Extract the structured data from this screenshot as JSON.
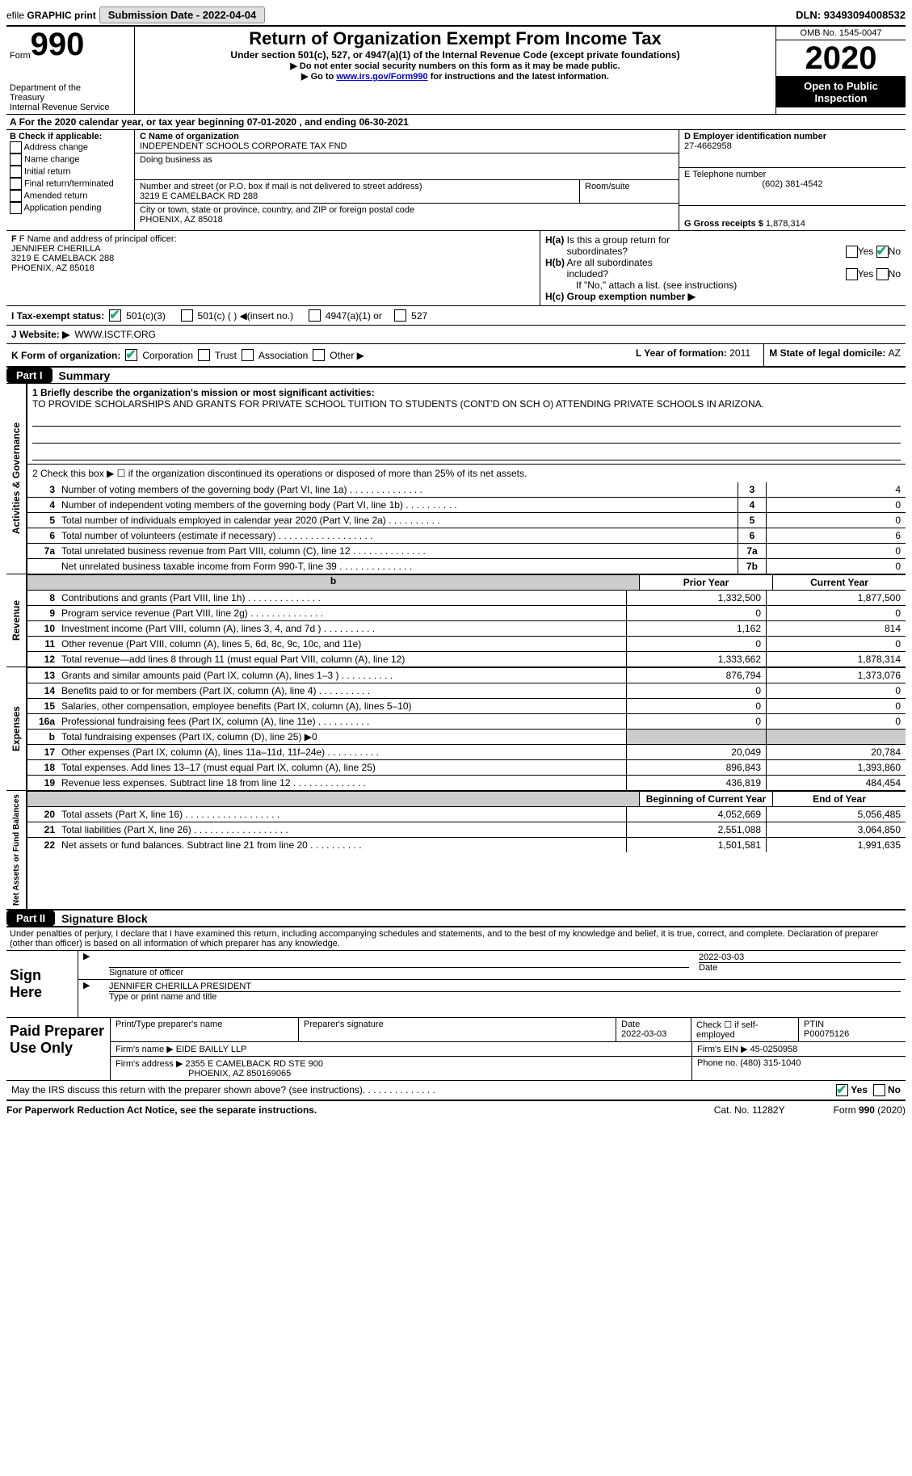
{
  "topbar": {
    "efile_prefix": "efile",
    "graphic": "GRAPHIC",
    "print": "print",
    "submission_label": "Submission Date - ",
    "submission_date": "2022-04-04",
    "dln_label": "DLN: ",
    "dln": "93493094008532"
  },
  "header": {
    "form_label": "Form",
    "form_number": "990",
    "dept1": "Department of the",
    "dept2": "Treasury",
    "dept3": "Internal Revenue Service",
    "title": "Return of Organization Exempt From Income Tax",
    "sub1": "Under section 501(c), 527, or 4947(a)(1) of the Internal Revenue Code (except private foundations)",
    "sub2": "▶ Do not enter social security numbers on this form as it may be made public.",
    "sub3_prefix": "▶ Go to ",
    "sub3_link": "www.irs.gov/Form990",
    "sub3_suffix": " for instructions and the latest information.",
    "omb": "OMB No. 1545-0047",
    "year": "2020",
    "open": "Open to Public Inspection"
  },
  "period": {
    "a_label": "A",
    "text_prefix": "For the 2020 calendar year, or tax year beginning ",
    "start": "07-01-2020",
    "text_mid": "     , and ending ",
    "end": "06-30-2021"
  },
  "blockB": {
    "title": "B Check if applicable:",
    "options": [
      "Address change",
      "Name change",
      "Initial return",
      "Final return/terminated",
      "Amended return",
      "Application pending"
    ],
    "checked": []
  },
  "blockC": {
    "name_label": "C Name of organization",
    "name": "INDEPENDENT SCHOOLS CORPORATE TAX FND",
    "dba_label": "Doing business as",
    "dba": "",
    "street_label": "Number and street (or P.O. box if mail is not delivered to street address)",
    "room_label": "Room/suite",
    "street": "3219 E CAMELBACK RD 288",
    "city_label": "City or town, state or province, country, and ZIP or foreign postal code",
    "city": "PHOENIX, AZ  85018"
  },
  "blockD": {
    "label": "D Employer identification number",
    "ein": "27-4662958"
  },
  "blockE": {
    "label": "E Telephone number",
    "phone": "(602) 381-4542"
  },
  "blockG": {
    "label": "G Gross receipts $ ",
    "value": "1,878,314"
  },
  "blockF": {
    "label": "F Name and address of principal officer:",
    "name": "JENNIFER CHERILLA",
    "addr1": "3219 E CAMELBACK 288",
    "addr2": "PHOENIX, AZ  85018"
  },
  "blockH": {
    "ha_label": "H(a)  Is this a group return for subordinates?",
    "ha_yes": "Yes",
    "ha_no": "No",
    "ha_checked": "No",
    "hb_label": "H(b)  Are all subordinates included?",
    "hb_yes": "Yes",
    "hb_no": "No",
    "hb_note": "If \"No,\" attach a list. (see instructions)",
    "hc_label": "H(c)  Group exemption number ▶"
  },
  "blockI": {
    "label": "I   Tax-exempt status:",
    "opts": [
      "501(c)(3)",
      "501(c) (  )  ◀(insert no.)",
      "4947(a)(1) or",
      "527"
    ],
    "checked": "501(c)(3)"
  },
  "blockJ": {
    "label": "J   Website: ▶",
    "value": "WWW.ISCTF.ORG"
  },
  "blockK": {
    "label": "K Form of organization:",
    "opts": [
      "Corporation",
      "Trust",
      "Association",
      "Other ▶"
    ],
    "checked": "Corporation"
  },
  "blockL": {
    "label": "L Year of formation: ",
    "value": "2011"
  },
  "blockM": {
    "label": "M State of legal domicile: ",
    "value": "AZ"
  },
  "part1": {
    "header": "Part I",
    "title": "Summary",
    "line1_label": "1   Briefly describe the organization's mission or most significant activities:",
    "mission": "TO PROVIDE SCHOLARSHIPS AND GRANTS FOR PRIVATE SCHOOL TUITION TO STUDENTS (CONT'D ON SCH O) ATTENDING PRIVATE SCHOOLS IN ARIZONA.",
    "line2": "2   Check this box ▶ ☐  if the organization discontinued its operations or disposed of more than 25% of its net assets."
  },
  "governance": {
    "label": "Activities & Governance",
    "rows": [
      {
        "num": "3",
        "desc": "Number of voting members of the governing body (Part VI, line 1a)",
        "box": "3",
        "val": "4",
        "dots": "dots-med"
      },
      {
        "num": "4",
        "desc": "Number of independent voting members of the governing body (Part VI, line 1b)",
        "box": "4",
        "val": "0",
        "dots": "dots-short"
      },
      {
        "num": "5",
        "desc": "Total number of individuals employed in calendar year 2020 (Part V, line 2a)",
        "box": "5",
        "val": "0",
        "dots": "dots-short"
      },
      {
        "num": "6",
        "desc": "Total number of volunteers (estimate if necessary)",
        "box": "6",
        "val": "6",
        "dots": "dots"
      },
      {
        "num": "7a",
        "desc": "Total unrelated business revenue from Part VIII, column (C), line 12",
        "box": "7a",
        "val": "0",
        "dots": "dots-med"
      },
      {
        "num": "",
        "desc": "Net unrelated business taxable income from Form 990-T, line 39",
        "box": "7b",
        "val": "0",
        "dots": "dots-med"
      }
    ]
  },
  "revenue": {
    "label": "Revenue",
    "col1": "Prior Year",
    "col2": "Current Year",
    "rows": [
      {
        "num": "8",
        "desc": "Contributions and grants (Part VIII, line 1h)",
        "py": "1,332,500",
        "cy": "1,877,500",
        "dots": "dots-med"
      },
      {
        "num": "9",
        "desc": "Program service revenue (Part VIII, line 2g)",
        "py": "0",
        "cy": "0",
        "dots": "dots-med"
      },
      {
        "num": "10",
        "desc": "Investment income (Part VIII, column (A), lines 3, 4, and 7d )",
        "py": "1,162",
        "cy": "814",
        "dots": "dots-short"
      },
      {
        "num": "11",
        "desc": "Other revenue (Part VIII, column (A), lines 5, 6d, 8c, 9c, 10c, and 11e)",
        "py": "0",
        "cy": "0",
        "dots": ""
      },
      {
        "num": "12",
        "desc": "Total revenue—add lines 8 through 11 (must equal Part VIII, column (A), line 12)",
        "py": "1,333,662",
        "cy": "1,878,314",
        "dots": ""
      }
    ]
  },
  "expenses": {
    "label": "Expenses",
    "rows": [
      {
        "num": "13",
        "desc": "Grants and similar amounts paid (Part IX, column (A), lines 1–3 )",
        "py": "876,794",
        "cy": "1,373,076",
        "dots": "dots-short"
      },
      {
        "num": "14",
        "desc": "Benefits paid to or for members (Part IX, column (A), line 4)",
        "py": "0",
        "cy": "0",
        "dots": "dots-short"
      },
      {
        "num": "15",
        "desc": "Salaries, other compensation, employee benefits (Part IX, column (A), lines 5–10)",
        "py": "0",
        "cy": "0",
        "dots": ""
      },
      {
        "num": "16a",
        "desc": "Professional fundraising fees (Part IX, column (A), line 11e)",
        "py": "0",
        "cy": "0",
        "dots": "dots-short"
      },
      {
        "num": "b",
        "desc": "Total fundraising expenses (Part IX, column (D), line 25) ▶0",
        "py": "",
        "cy": "",
        "shade": true,
        "dots": ""
      },
      {
        "num": "17",
        "desc": "Other expenses (Part IX, column (A), lines 11a–11d, 11f–24e)",
        "py": "20,049",
        "cy": "20,784",
        "dots": "dots-short"
      },
      {
        "num": "18",
        "desc": "Total expenses. Add lines 13–17 (must equal Part IX, column (A), line 25)",
        "py": "896,843",
        "cy": "1,393,860",
        "dots": ""
      },
      {
        "num": "19",
        "desc": "Revenue less expenses. Subtract line 18 from line 12",
        "py": "436,819",
        "cy": "484,454",
        "dots": "dots-med"
      }
    ]
  },
  "netassets": {
    "label": "Net Assets or Fund Balances",
    "col1": "Beginning of Current Year",
    "col2": "End of Year",
    "rows": [
      {
        "num": "20",
        "desc": "Total assets (Part X, line 16)",
        "py": "4,052,669",
        "cy": "5,056,485",
        "dots": "dots"
      },
      {
        "num": "21",
        "desc": "Total liabilities (Part X, line 26)",
        "py": "2,551,088",
        "cy": "3,064,850",
        "dots": "dots"
      },
      {
        "num": "22",
        "desc": "Net assets or fund balances. Subtract line 21 from line 20",
        "py": "1,501,581",
        "cy": "1,991,635",
        "dots": "dots-short"
      }
    ]
  },
  "part2": {
    "header": "Part II",
    "title": "Signature Block",
    "penalty": "Under penalties of perjury, I declare that I have examined this return, including accompanying schedules and statements, and to the best of my knowledge and belief, it is true, correct, and complete. Declaration of preparer (other than officer) is based on all information of which preparer has any knowledge."
  },
  "sign": {
    "label": "Sign Here",
    "sig_label": "Signature of officer",
    "date_label": "Date",
    "date": "2022-03-03",
    "name_line": "JENNIFER CHERILLA  PRESIDENT",
    "name_label": "Type or print name and title"
  },
  "preparer": {
    "label": "Paid Preparer Use Only",
    "col_name": "Print/Type preparer's name",
    "col_sig": "Preparer's signature",
    "col_date": "Date",
    "date": "2022-03-03",
    "check_label": "Check ☐ if self-employed",
    "ptin_label": "PTIN",
    "ptin": "P00075126",
    "firm_name_label": "Firm's name     ▶",
    "firm_name": "EIDE BAILLY LLP",
    "firm_ein_label": "Firm's EIN ▶",
    "firm_ein": "45-0250958",
    "firm_addr_label": "Firm's address ▶",
    "firm_addr1": "2355 E CAMELBACK RD STE 900",
    "firm_addr2": "PHOENIX, AZ  850169065",
    "phone_label": "Phone no. ",
    "phone": "(480) 315-1040"
  },
  "discuss": {
    "text": "May the IRS discuss this return with the preparer shown above? (see instructions)",
    "yes": "Yes",
    "no": "No",
    "checked": "Yes"
  },
  "footer": {
    "left": "For Paperwork Reduction Act Notice, see the separate instructions.",
    "mid": "Cat. No. 11282Y",
    "right": "Form 990 (2020)"
  }
}
